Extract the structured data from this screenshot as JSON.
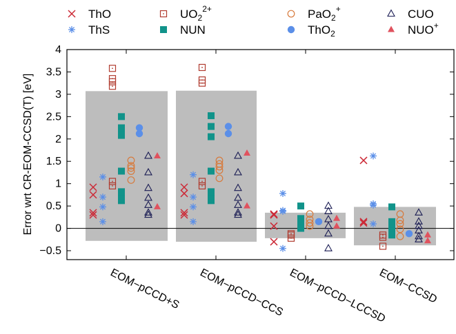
{
  "chart_data": {
    "type": "scatter",
    "ylabel": "Error wrt CR-EOM-CCSD(T) [eV]",
    "ylim": [
      -0.7,
      4
    ],
    "yticks": [
      -0.5,
      0,
      0.5,
      1,
      1.5,
      2,
      2.5,
      3,
      3.5,
      4
    ],
    "ytick_labels": [
      "−0.5",
      "0",
      "0.5",
      "1",
      "1.5",
      "2",
      "2.5",
      "3",
      "3.5",
      "4"
    ],
    "grid": false,
    "legend_position": "top",
    "categories": [
      "EOM−pCCD+S",
      "EOM−pCCD−CCS",
      "EOM−pCCD−LCCSD",
      "EOM−CCSD"
    ],
    "ranges": [
      {
        "low": -0.28,
        "high": 3.07
      },
      {
        "low": -0.3,
        "high": 3.08
      },
      {
        "low": -0.22,
        "high": 0.35
      },
      {
        "low": -0.38,
        "high": 0.48
      }
    ],
    "series": [
      {
        "name": "ThO",
        "sub": "",
        "sup": "",
        "color": "#cc2936",
        "marker": "x",
        "values": [
          [
            0.3,
            0.35,
            0.75,
            0.92
          ],
          [
            0.3,
            0.35,
            0.78,
            0.92
          ],
          [
            -0.3,
            0.05,
            0.3,
            0.32
          ],
          [
            0.12,
            0.15,
            1.52
          ]
        ]
      },
      {
        "name": "ThS",
        "sub": "",
        "sup": "",
        "color": "#5b8fe8",
        "marker": "star",
        "values": [
          [
            0.15,
            0.48,
            0.7,
            1.15
          ],
          [
            0.15,
            0.48,
            0.7,
            1.2
          ],
          [
            -0.45,
            0.38,
            0.4,
            0.78
          ],
          [
            0.1,
            0.52,
            0.55,
            1.62
          ]
        ]
      },
      {
        "name": "UO",
        "sub": "2",
        "sup": "2+",
        "color": "#b03a2e",
        "marker": "square-open",
        "values": [
          [
            0.95,
            1.05,
            3.18,
            3.28,
            3.35,
            3.58
          ],
          [
            0.95,
            1.05,
            3.25,
            3.32,
            3.6
          ],
          [
            -0.22,
            -0.15,
            -0.12
          ],
          [
            -0.4,
            -0.2,
            -0.15
          ]
        ]
      },
      {
        "name": "NUN",
        "sub": "",
        "sup": "",
        "color": "#11938a",
        "marker": "square",
        "values": [
          [
            0.62,
            0.72,
            0.82,
            1.28,
            2.08,
            2.15,
            2.25,
            2.5
          ],
          [
            0.62,
            0.72,
            0.82,
            1.28,
            2.05,
            2.28,
            2.52
          ],
          [
            0.0,
            0.08,
            0.15,
            0.22,
            0.5
          ],
          [
            -0.15,
            0.0,
            0.1,
            0.15,
            0.48
          ]
        ]
      },
      {
        "name": "PaO",
        "sub": "2",
        "sup": "+",
        "color": "#d77a3c",
        "marker": "circle-open",
        "values": [
          [
            1.08,
            1.28,
            1.35,
            1.4,
            1.52
          ],
          [
            1.12,
            1.3,
            1.38,
            1.44,
            1.52
          ],
          [
            0.05,
            0.12,
            0.2,
            0.32
          ],
          [
            -0.18,
            -0.02,
            0.1,
            0.18,
            0.32
          ]
        ]
      },
      {
        "name": "ThO",
        "sub": "2",
        "sup": "",
        "color": "#5b8fe8",
        "marker": "circle",
        "values": [
          [
            2.12,
            2.25
          ],
          [
            2.12,
            2.28
          ],
          [
            0.15
          ],
          [
            -0.12
          ]
        ]
      },
      {
        "name": "CUO",
        "sub": "",
        "sup": "",
        "color": "#1b1d54",
        "marker": "triangle-open",
        "values": [
          [
            0.3,
            0.35,
            0.52,
            0.68,
            0.9,
            1.25,
            1.62
          ],
          [
            0.3,
            0.35,
            0.52,
            0.68,
            0.9,
            1.25,
            1.62
          ],
          [
            -0.45,
            -0.12,
            0.05,
            0.2,
            0.38,
            0.5
          ],
          [
            -0.25,
            -0.18,
            -0.05,
            0.05,
            0.15,
            0.35
          ]
        ]
      },
      {
        "name": "NUO",
        "sub": "",
        "sup": "+",
        "color": "#e0525e",
        "marker": "triangle",
        "values": [
          [
            0.48,
            1.62
          ],
          [
            0.5,
            1.68
          ],
          [
            0.05,
            0.22
          ],
          [
            -0.28,
            -0.15
          ]
        ]
      }
    ]
  }
}
